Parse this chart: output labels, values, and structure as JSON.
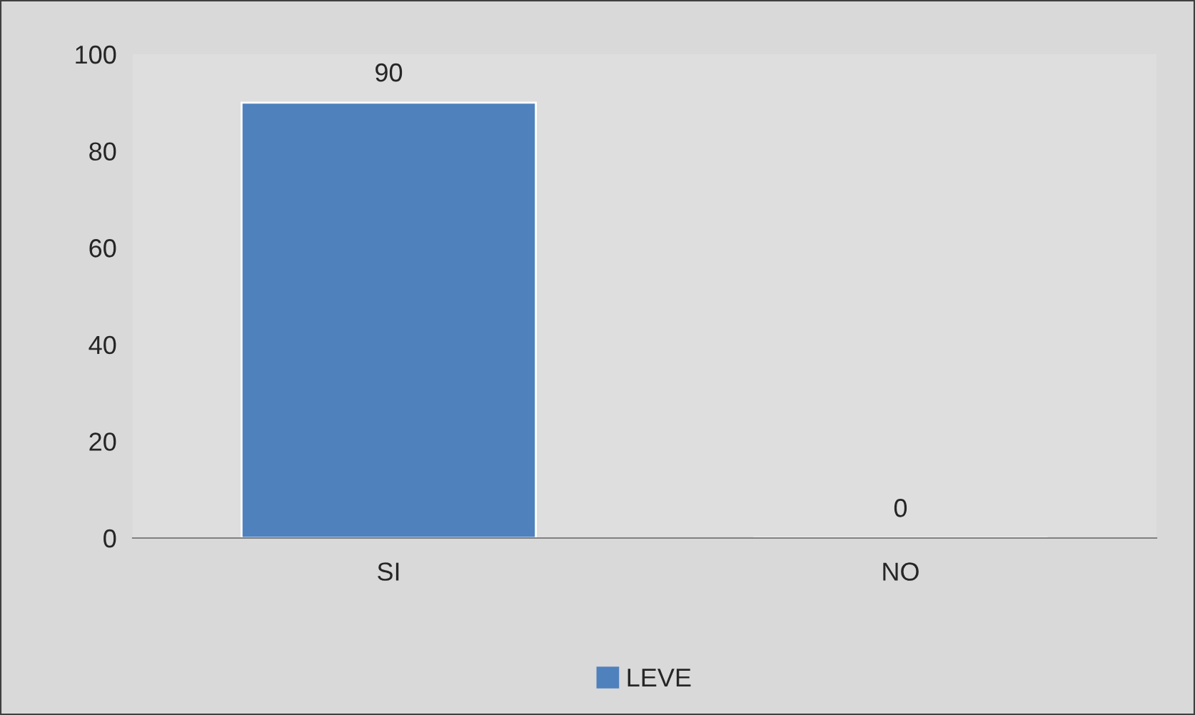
{
  "chart_data": {
    "type": "bar",
    "categories": [
      "SI",
      "NO"
    ],
    "series": [
      {
        "name": "LEVE",
        "color": "#4f81bd",
        "values": [
          90,
          0
        ]
      }
    ],
    "ylim": [
      0,
      100
    ],
    "yticks": [
      0,
      20,
      40,
      60,
      80,
      100
    ],
    "data_labels": true,
    "legend": "bottom",
    "grid": false
  }
}
